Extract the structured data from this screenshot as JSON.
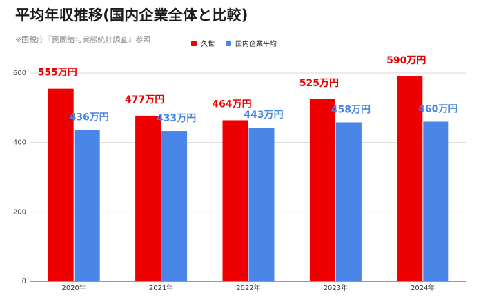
{
  "title": "平均年収推移(国内企業全体と比較)",
  "subtitle": "※国税庁『民間給与実態統計調査』参照",
  "colors": {
    "kuse": "#ee0000",
    "avg": "#4a86e8",
    "grid": "#d9d9d9",
    "axis": "#333333"
  },
  "legend": [
    {
      "name": "久世",
      "color": "#ee0000"
    },
    {
      "name": "国内企業平均",
      "color": "#4a86e8"
    }
  ],
  "chart_data": {
    "type": "bar",
    "categories": [
      "2020年",
      "2021年",
      "2022年",
      "2023年",
      "2024年"
    ],
    "series": [
      {
        "name": "久世",
        "values": [
          555,
          477,
          464,
          525,
          590
        ],
        "labels": [
          "555万円",
          "477万円",
          "464万円",
          "525万円",
          "590万円"
        ]
      },
      {
        "name": "国内企業平均",
        "values": [
          436,
          433,
          443,
          458,
          460
        ],
        "labels": [
          "436万円",
          "433万円",
          "443万円",
          "458万円",
          "460万円"
        ]
      }
    ],
    "yticks": [
      0,
      200,
      400,
      600
    ],
    "ylim": [
      0,
      600
    ],
    "grid": true,
    "legend_position": "top",
    "xlabel": "",
    "ylabel": ""
  }
}
